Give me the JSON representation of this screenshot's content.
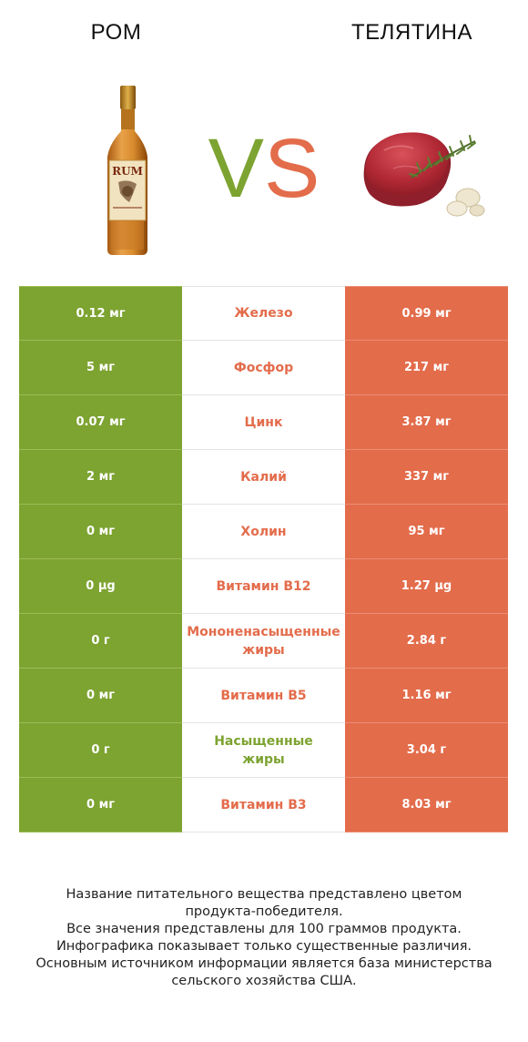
{
  "header": {
    "left_title": "РОМ",
    "right_title": "ТЕЛЯТИНА",
    "vs_v": "V",
    "vs_s": "S"
  },
  "images": {
    "left": "rum-bottle",
    "right": "veal-meat"
  },
  "colors": {
    "green": "#7da331",
    "orange": "#e36c4b"
  },
  "table": {
    "rows": [
      {
        "left": "0.12 мг",
        "nutrient": "Железо",
        "right": "0.99 мг",
        "winner": "right"
      },
      {
        "left": "5 мг",
        "nutrient": "Фосфор",
        "right": "217 мг",
        "winner": "right"
      },
      {
        "left": "0.07 мг",
        "nutrient": "Цинк",
        "right": "3.87 мг",
        "winner": "right"
      },
      {
        "left": "2 мг",
        "nutrient": "Калий",
        "right": "337 мг",
        "winner": "right"
      },
      {
        "left": "0 мг",
        "nutrient": "Холин",
        "right": "95 мг",
        "winner": "right"
      },
      {
        "left": "0 µg",
        "nutrient": "Витамин B12",
        "right": "1.27 µg",
        "winner": "right"
      },
      {
        "left": "0 г",
        "nutrient": "Мононенасыщенные\nжиры",
        "right": "2.84 г",
        "winner": "right"
      },
      {
        "left": "0 мг",
        "nutrient": "Витамин B5",
        "right": "1.16 мг",
        "winner": "right"
      },
      {
        "left": "0 г",
        "nutrient": "Насыщенные\nжиры",
        "right": "3.04 г",
        "winner": "left"
      },
      {
        "left": "0 мг",
        "nutrient": "Витамин B3",
        "right": "8.03 мг",
        "winner": "right"
      }
    ]
  },
  "footer": {
    "line1": "Название питательного вещества представлено цветом",
    "line2": "продукта-победителя.",
    "line3": "Все значения представлены для 100 граммов продукта.",
    "line4": "Инфографика показывает только существенные различия.",
    "line5": "Основным источником информации является база министерства",
    "line6": "сельского хозяйства США."
  }
}
